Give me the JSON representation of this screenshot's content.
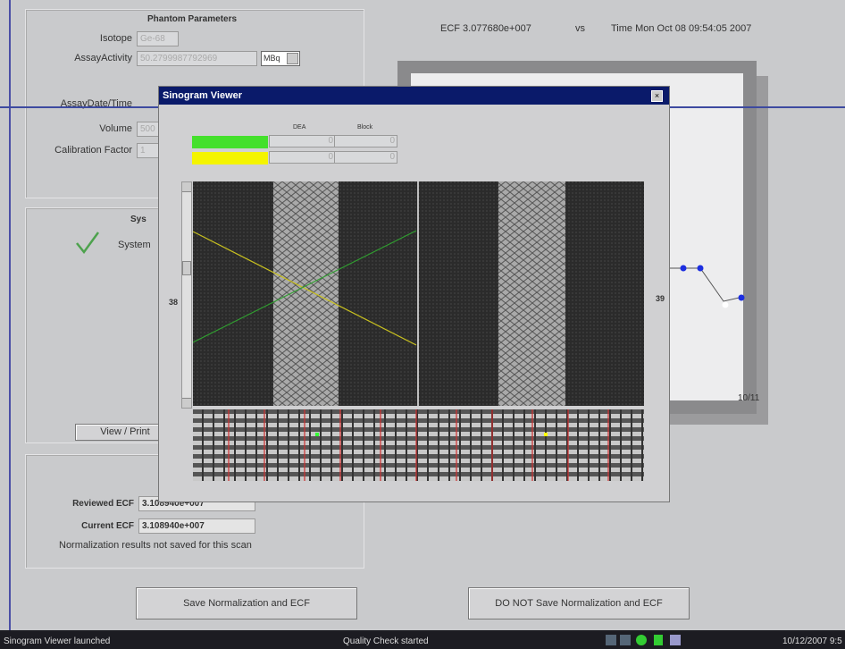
{
  "phantom_parameters": {
    "title": "Phantom Parameters",
    "isotope": {
      "label": "Isotope",
      "value": "Ge-68"
    },
    "assay_activity": {
      "label": "AssayActivity",
      "value": "50.2799987792969",
      "unit": "MBq"
    },
    "assay_datetime": {
      "label": "AssayDate/Time"
    },
    "volume": {
      "label": "Volume",
      "value": "500"
    },
    "calibration_factor": {
      "label": "Calibration Factor",
      "value": "1"
    }
  },
  "system": {
    "title": "Sys",
    "status": "System"
  },
  "view_print": "View / Print",
  "ecf": {
    "reviewed": {
      "label": "Reviewed ECF",
      "value": "3.108940e+007"
    },
    "current": {
      "label": "Current ECF",
      "value": "3.108940e+007"
    },
    "note": "Normalization results not saved for this scan"
  },
  "chart": {
    "ecf": "ECF 3.077680e+007",
    "vs": "vs",
    "time": "Time Mon Oct 08 09:54:05 2007",
    "x_label": "10/11"
  },
  "buttons": {
    "save": "Save Normalization and ECF",
    "do_not_save": "DO NOT Save Normalization and ECF"
  },
  "status_bar": {
    "left": "Sinogram Viewer launched",
    "middle": "Quality Check started",
    "clock": "10/12/2007 9:5"
  },
  "sinogram_viewer": {
    "title": "Sinogram Viewer",
    "columns": [
      "DEA",
      "Block"
    ],
    "rows": [
      [
        "0",
        "0"
      ],
      [
        "0",
        "0"
      ]
    ],
    "left_plane": "38",
    "right_plane": "39"
  }
}
